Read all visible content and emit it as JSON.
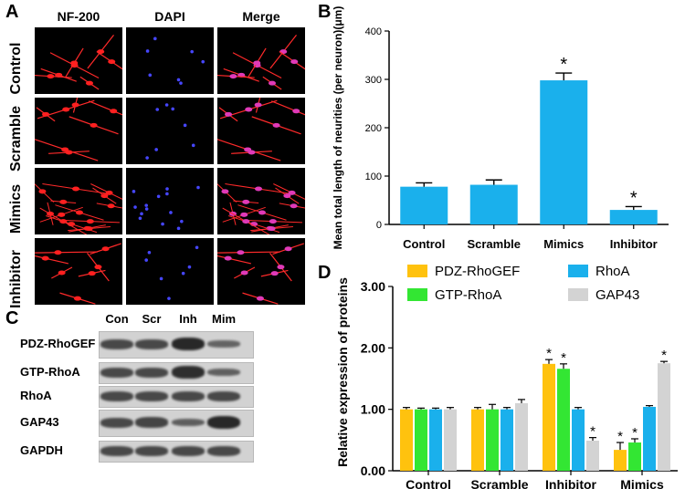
{
  "panels": {
    "a": "A",
    "b": "B",
    "c": "C",
    "d": "D"
  },
  "microscopy": {
    "columns": [
      "NF-200",
      "DAPI",
      "Merge"
    ],
    "rows": [
      "Control",
      "Scramble",
      "Mimics",
      "Inhibitor"
    ]
  },
  "blot": {
    "lanes": [
      "Con",
      "Scr",
      "Inh",
      "Mim"
    ],
    "proteins": [
      "PDZ-RhoGEF",
      "GTP-RhoA",
      "RhoA",
      "GAP43",
      "GAPDH"
    ],
    "intensity": [
      [
        1.0,
        1.0,
        1.75,
        0.35
      ],
      [
        1.0,
        1.0,
        1.6,
        0.45
      ],
      [
        1.0,
        1.0,
        1.0,
        1.0
      ],
      [
        1.0,
        1.1,
        0.5,
        1.75
      ],
      [
        1.0,
        1.0,
        1.0,
        1.0
      ]
    ]
  },
  "chart_data": [
    {
      "type": "bar",
      "ylabel": "Mean total length of neurities (per neuron)(μm)",
      "categories": [
        "Control",
        "Scramble",
        "Mimics",
        "Inhibitor"
      ],
      "values": [
        78,
        82,
        298,
        30
      ],
      "errors": [
        8,
        10,
        15,
        7
      ],
      "significance": [
        "",
        "",
        "*",
        "*"
      ],
      "ylim": [
        0,
        400
      ],
      "yticks": [
        "0",
        "100",
        "200",
        "300",
        "400"
      ],
      "color": "#1ab0ec"
    },
    {
      "type": "bar",
      "ylabel": "Relative expression of proteins",
      "categories": [
        "Control",
        "Scramble",
        "Inhibitor",
        "Mimics"
      ],
      "ylim": [
        0,
        3
      ],
      "yticks": [
        "0.00",
        "1.00",
        "2.00",
        "3.00"
      ],
      "legend": "top",
      "series": [
        {
          "name": "PDZ-RhoGEF",
          "color": "#ffc20e",
          "values": [
            1.0,
            1.0,
            1.74,
            0.34
          ],
          "errors": [
            0.03,
            0.03,
            0.07,
            0.12
          ],
          "significance": [
            "",
            "",
            "*",
            "*"
          ]
        },
        {
          "name": "GTP-RhoA",
          "color": "#33e633",
          "values": [
            1.0,
            1.0,
            1.66,
            0.46
          ],
          "errors": [
            0.02,
            0.08,
            0.08,
            0.06
          ],
          "significance": [
            "",
            "",
            "*",
            "*"
          ]
        },
        {
          "name": "RhoA",
          "color": "#1ab0ec",
          "values": [
            1.0,
            1.0,
            1.0,
            1.04
          ],
          "errors": [
            0.02,
            0.03,
            0.03,
            0.02
          ],
          "significance": [
            "",
            "",
            "",
            ""
          ]
        },
        {
          "name": "GAP43",
          "color": "#d3d3d3",
          "values": [
            1.0,
            1.1,
            0.49,
            1.75
          ],
          "errors": [
            0.03,
            0.06,
            0.05,
            0.03
          ],
          "significance": [
            "",
            "",
            "*",
            "*"
          ]
        }
      ]
    }
  ]
}
